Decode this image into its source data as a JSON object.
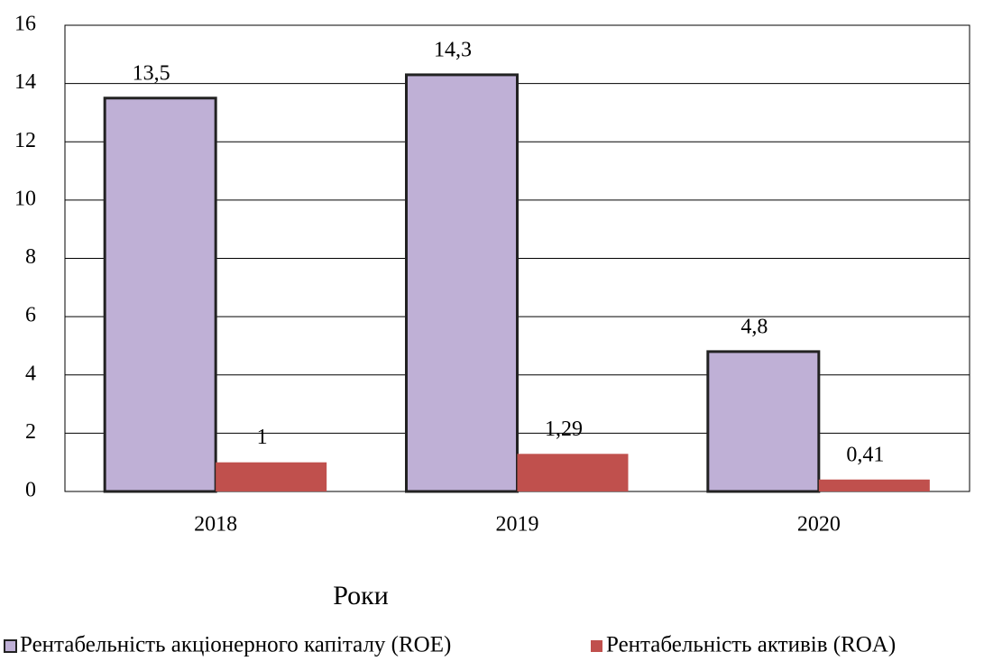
{
  "chart_data": {
    "type": "bar",
    "categories": [
      "2018",
      "2019",
      "2020"
    ],
    "series": [
      {
        "name": "Рентабельність акціонерного капіталу (ROE)",
        "color": "#bfb0d6",
        "values": [
          13.5,
          14.3,
          4.8
        ],
        "value_labels": [
          "13,5",
          "14,3",
          "4,8"
        ]
      },
      {
        "name": "Рентабельність активів (ROA)",
        "color": "#c0504d",
        "values": [
          1,
          1.29,
          0.41
        ],
        "value_labels": [
          "1",
          "1,29",
          "0,41"
        ]
      }
    ],
    "xlabel": "Роки",
    "ylim": [
      0,
      16
    ],
    "yticks": [
      0,
      2,
      4,
      6,
      8,
      10,
      12,
      14,
      16
    ],
    "grid": true,
    "legend": "bottom"
  }
}
